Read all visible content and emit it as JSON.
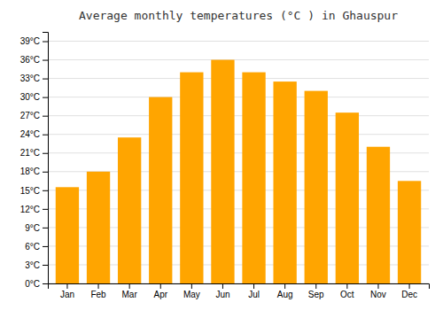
{
  "chart_data": {
    "type": "bar",
    "title": "Average monthly temperatures (°C ) in Ghauspur",
    "categories": [
      "Jan",
      "Feb",
      "Mar",
      "Apr",
      "May",
      "Jun",
      "Jul",
      "Aug",
      "Sep",
      "Oct",
      "Nov",
      "Dec"
    ],
    "values": [
      15.5,
      18.0,
      23.5,
      30.0,
      34.0,
      36.0,
      34.0,
      32.5,
      31.0,
      27.5,
      22.0,
      16.5
    ],
    "color": "#FFA500",
    "ylim": [
      0,
      40.5
    ],
    "yticks": [
      {
        "value": 0,
        "label": "0°C"
      },
      {
        "value": 3,
        "label": "3°C"
      },
      {
        "value": 6,
        "label": "6°C"
      },
      {
        "value": 9,
        "label": "9°C"
      },
      {
        "value": 12,
        "label": "12°C"
      },
      {
        "value": 15,
        "label": "15°C"
      },
      {
        "value": 18,
        "label": "18°C"
      },
      {
        "value": 21,
        "label": "21°C"
      },
      {
        "value": 24,
        "label": "24°C"
      },
      {
        "value": 27,
        "label": "27°C"
      },
      {
        "value": 30,
        "label": "30°C"
      },
      {
        "value": 33,
        "label": "33°C"
      },
      {
        "value": 36,
        "label": "36°C"
      },
      {
        "value": 39,
        "label": "39°C"
      }
    ],
    "grid": true
  }
}
